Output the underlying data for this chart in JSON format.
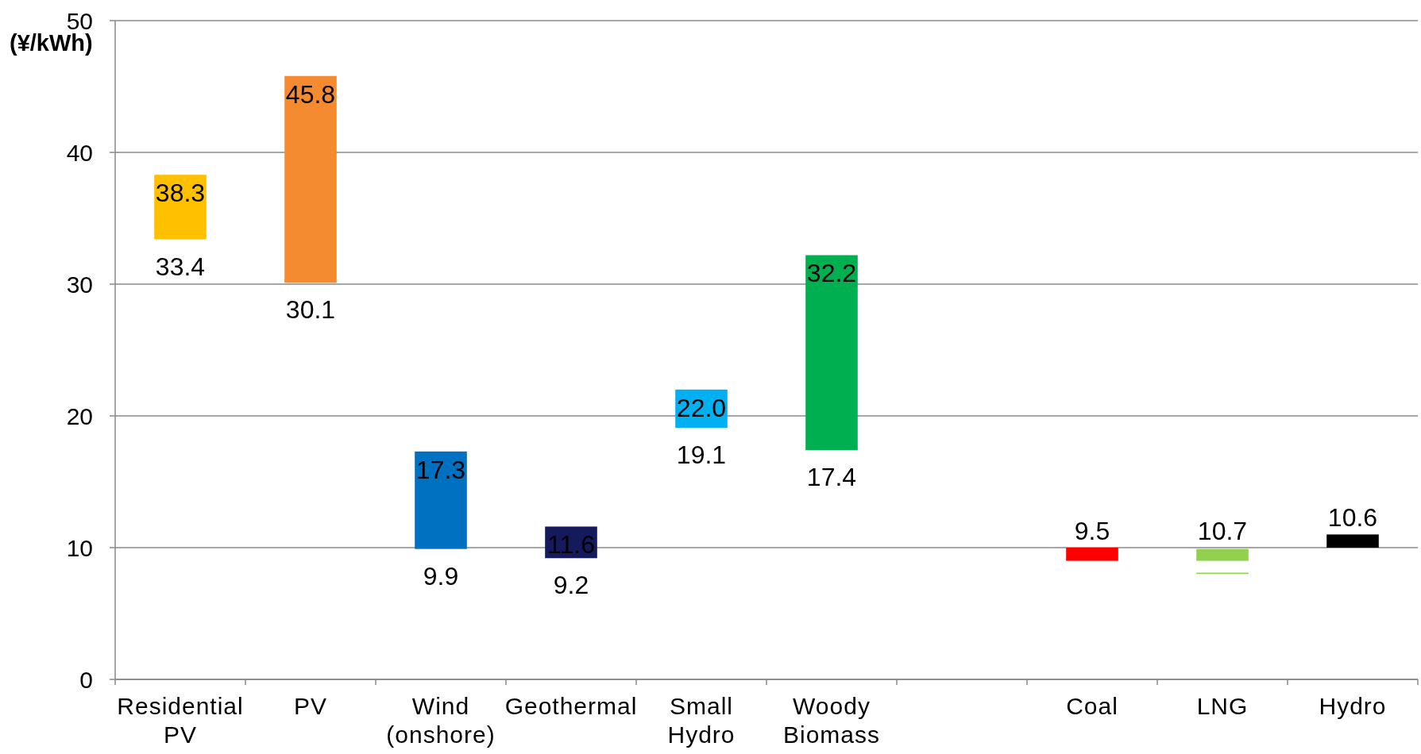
{
  "chart_data": {
    "type": "bar",
    "ylabel": "(¥/kWh)",
    "categories": [
      "Residential PV",
      "PV",
      "Wind (onshore)",
      "Geothermal",
      "Small Hydro",
      "Woody Biomass",
      null,
      "Coal",
      "LNG",
      "Hydro"
    ],
    "series": [
      {
        "base": [
          33.4,
          30.1,
          9.9,
          9.2,
          19.1,
          17.4,
          null,
          9.0,
          9.0,
          10.0
        ],
        "values": [
          4.9,
          15.7,
          7.4,
          2.4,
          2.9,
          14.8,
          null,
          1.0,
          0.9,
          1.0
        ],
        "colors": [
          "#ffc000",
          "#f58b30",
          "#0070c0",
          "#141a5c",
          "#00b0f0",
          "#00b050",
          null,
          "#ff0000",
          "#92d050",
          "#000000"
        ]
      },
      {
        "base": [
          null,
          null,
          null,
          null,
          null,
          null,
          null,
          null,
          8.0,
          null
        ],
        "values": [
          null,
          null,
          null,
          null,
          null,
          null,
          null,
          null,
          0.1,
          null
        ],
        "color": "#92d050"
      }
    ],
    "ylim": [
      0,
      50
    ],
    "yticks": [
      0,
      10,
      20,
      30,
      40,
      50
    ],
    "grid": "y",
    "annotations": [
      {
        "text": "38.3",
        "x": "Residential PV",
        "y": 38.3
      },
      {
        "text": "33.4",
        "x": "Residential PV",
        "y": 33.4
      },
      {
        "text": "45.8",
        "x": "PV",
        "y": 45.8
      },
      {
        "text": "30.1",
        "x": "PV",
        "y": 30.1
      },
      {
        "text": "17.3",
        "x": "Wind (onshore)",
        "y": 17.3
      },
      {
        "text": "9.9",
        "x": "Wind (onshore)",
        "y": 9.9
      },
      {
        "text": "11.6",
        "x": "Geothermal",
        "y": 11.6
      },
      {
        "text": "9.2",
        "x": "Geothermal",
        "y": 9.2
      },
      {
        "text": "22.0",
        "x": "Small Hydro",
        "y": 22.0
      },
      {
        "text": "19.1",
        "x": "Small Hydro",
        "y": 19.1
      },
      {
        "text": "32.2",
        "x": "Woody Biomass",
        "y": 32.2
      },
      {
        "text": "17.4",
        "x": "Woody Biomass",
        "y": 17.4
      },
      "9.5",
      "10.7",
      "10.6"
    ]
  }
}
